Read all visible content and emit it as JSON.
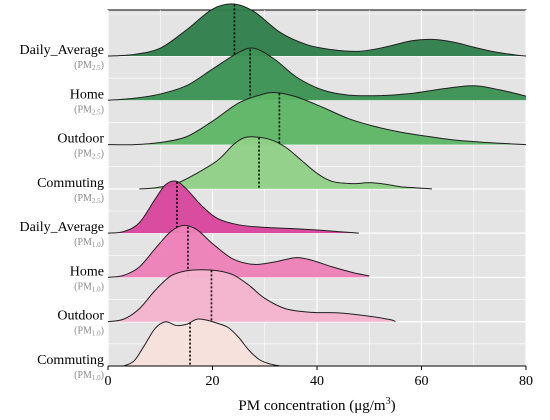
{
  "chart_data": {
    "type": "ridgeline",
    "title": "",
    "xlabel": "PM concentration (μg/m³)",
    "xlabel_parts": {
      "text": "PM concentration (μg/m",
      "sup": "3",
      "tail": ")"
    },
    "xlim": [
      0,
      80
    ],
    "xticks": [
      0,
      20,
      40,
      60,
      80
    ],
    "grid": true,
    "series": [
      {
        "name": "Daily_Average",
        "sub_base": "(PM",
        "sub_sub": "2.5",
        "sub_tail": ")",
        "color": "#2e7d4a",
        "median": 24.2,
        "density": [
          [
            0,
            0.0
          ],
          [
            5,
            0.03
          ],
          [
            10,
            0.15
          ],
          [
            15,
            0.5
          ],
          [
            20,
            0.9
          ],
          [
            24,
            1.0
          ],
          [
            28,
            0.85
          ],
          [
            33,
            0.45
          ],
          [
            38,
            0.22
          ],
          [
            43,
            0.12
          ],
          [
            48,
            0.09
          ],
          [
            53,
            0.17
          ],
          [
            58,
            0.29
          ],
          [
            62,
            0.32
          ],
          [
            66,
            0.27
          ],
          [
            70,
            0.17
          ],
          [
            74,
            0.08
          ],
          [
            78,
            0.02
          ],
          [
            80,
            0.0
          ]
        ]
      },
      {
        "name": "Home",
        "sub_base": "(PM",
        "sub_sub": "2.5",
        "sub_tail": ")",
        "color": "#3a9152",
        "median": 27.2,
        "density": [
          [
            0,
            0.0
          ],
          [
            5,
            0.04
          ],
          [
            10,
            0.12
          ],
          [
            15,
            0.28
          ],
          [
            20,
            0.6
          ],
          [
            25,
            0.92
          ],
          [
            28,
            1.0
          ],
          [
            32,
            0.78
          ],
          [
            36,
            0.45
          ],
          [
            41,
            0.2
          ],
          [
            46,
            0.1
          ],
          [
            52,
            0.09
          ],
          [
            58,
            0.13
          ],
          [
            64,
            0.22
          ],
          [
            70,
            0.28
          ],
          [
            75,
            0.2
          ],
          [
            80,
            0.08
          ]
        ]
      },
      {
        "name": "Outdoor",
        "sub_base": "(PM",
        "sub_sub": "2.5",
        "sub_tail": ")",
        "color": "#5cb565",
        "median": 32.8,
        "density": [
          [
            0,
            0.0
          ],
          [
            5,
            0.0
          ],
          [
            10,
            0.04
          ],
          [
            15,
            0.15
          ],
          [
            20,
            0.45
          ],
          [
            25,
            0.8
          ],
          [
            29,
            0.95
          ],
          [
            32,
            1.0
          ],
          [
            36,
            0.92
          ],
          [
            41,
            0.72
          ],
          [
            46,
            0.5
          ],
          [
            51,
            0.35
          ],
          [
            56,
            0.24
          ],
          [
            61,
            0.16
          ],
          [
            66,
            0.09
          ],
          [
            71,
            0.05
          ],
          [
            76,
            0.02
          ],
          [
            80,
            0.0
          ]
        ]
      },
      {
        "name": "Commuting",
        "sub_base": "(PM",
        "sub_sub": "2.5",
        "sub_tail": ")",
        "color": "#8fd186",
        "median": 28.9,
        "density": [
          [
            6,
            0.0
          ],
          [
            9,
            0.02
          ],
          [
            13,
            0.1
          ],
          [
            17,
            0.3
          ],
          [
            21,
            0.55
          ],
          [
            24,
            0.85
          ],
          [
            26,
            0.98
          ],
          [
            28,
            1.0
          ],
          [
            31,
            0.95
          ],
          [
            34,
            0.8
          ],
          [
            37,
            0.55
          ],
          [
            40,
            0.3
          ],
          [
            43,
            0.14
          ],
          [
            47,
            0.1
          ],
          [
            50,
            0.12
          ],
          [
            53,
            0.09
          ],
          [
            56,
            0.04
          ],
          [
            59,
            0.02
          ],
          [
            62,
            0.0
          ]
        ]
      },
      {
        "name": "Daily_Average",
        "sub_base": "(PM",
        "sub_sub": "1.0",
        "sub_tail": ")",
        "color": "#d9439b",
        "median": 13.2,
        "density": [
          [
            0,
            0.0
          ],
          [
            3,
            0.03
          ],
          [
            6,
            0.2
          ],
          [
            9,
            0.65
          ],
          [
            11,
            0.93
          ],
          [
            13,
            1.0
          ],
          [
            15,
            0.85
          ],
          [
            18,
            0.52
          ],
          [
            21,
            0.28
          ],
          [
            25,
            0.16
          ],
          [
            30,
            0.11
          ],
          [
            35,
            0.09
          ],
          [
            40,
            0.06
          ],
          [
            44,
            0.03
          ],
          [
            48,
            0.0
          ]
        ]
      },
      {
        "name": "Home",
        "sub_base": "(PM",
        "sub_sub": "1.0",
        "sub_tail": ")",
        "color": "#ee7fb7",
        "median": 15.3,
        "density": [
          [
            0,
            0.0
          ],
          [
            3,
            0.04
          ],
          [
            6,
            0.2
          ],
          [
            9,
            0.55
          ],
          [
            12,
            0.88
          ],
          [
            14.5,
            1.0
          ],
          [
            17,
            0.92
          ],
          [
            20,
            0.65
          ],
          [
            24,
            0.35
          ],
          [
            28,
            0.25
          ],
          [
            32,
            0.3
          ],
          [
            36,
            0.38
          ],
          [
            39,
            0.33
          ],
          [
            43,
            0.2
          ],
          [
            47,
            0.09
          ],
          [
            50,
            0.03
          ]
        ]
      },
      {
        "name": "Outdoor",
        "sub_base": "(PM",
        "sub_sub": "1.0",
        "sub_tail": ")",
        "color": "#f4b3cd",
        "median": 19.8,
        "density": [
          [
            0,
            0.0
          ],
          [
            3,
            0.05
          ],
          [
            6,
            0.25
          ],
          [
            9,
            0.6
          ],
          [
            12,
            0.88
          ],
          [
            15,
            0.98
          ],
          [
            18,
            1.0
          ],
          [
            21,
            0.98
          ],
          [
            24,
            0.9
          ],
          [
            27,
            0.7
          ],
          [
            30,
            0.45
          ],
          [
            34,
            0.25
          ],
          [
            39,
            0.18
          ],
          [
            44,
            0.17
          ],
          [
            49,
            0.12
          ],
          [
            54,
            0.04
          ],
          [
            55,
            0.0
          ]
        ]
      },
      {
        "name": "Commuting",
        "sub_base": "(PM",
        "sub_sub": "1.0",
        "sub_tail": ")",
        "color": "#f8e0dc",
        "median": 15.7,
        "density": [
          [
            3,
            0.0
          ],
          [
            5,
            0.1
          ],
          [
            7,
            0.4
          ],
          [
            9,
            0.72
          ],
          [
            11,
            0.85
          ],
          [
            13,
            0.78
          ],
          [
            15,
            0.8
          ],
          [
            17,
            0.9
          ],
          [
            19,
            0.88
          ],
          [
            21,
            0.82
          ],
          [
            23,
            0.74
          ],
          [
            25,
            0.55
          ],
          [
            27,
            0.3
          ],
          [
            29,
            0.12
          ],
          [
            31,
            0.04
          ],
          [
            33,
            0.0
          ]
        ]
      }
    ]
  }
}
